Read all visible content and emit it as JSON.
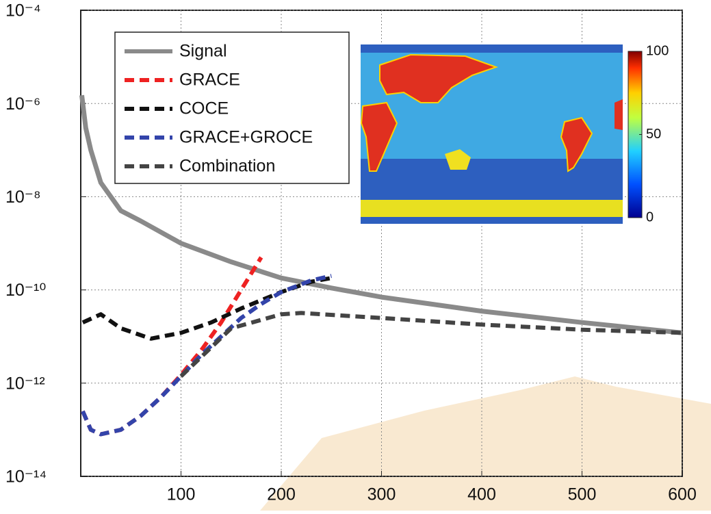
{
  "chart_data": {
    "type": "line",
    "log_y": true,
    "grid": true,
    "legend": "upper left",
    "xlim": [
      0,
      600
    ],
    "ylim": [
      1e-14,
      0.0001
    ],
    "xticks": [
      100,
      200,
      300,
      400,
      500,
      600
    ],
    "yticks": [
      {
        "value": 1e-14,
        "label": "10⁻¹⁴"
      },
      {
        "value": 1e-12,
        "label": "10⁻¹²"
      },
      {
        "value": 1e-10,
        "label": "10⁻¹⁰"
      },
      {
        "value": 1e-08,
        "label": "10⁻⁸"
      },
      {
        "value": 1e-06,
        "label": "10⁻⁶"
      },
      {
        "value": 0.0001,
        "label": "10⁻⁴"
      }
    ],
    "series": [
      {
        "name": "Signal",
        "color": "#8a8a8a",
        "dash": false,
        "x": [
          1,
          5,
          10,
          20,
          40,
          60,
          100,
          150,
          200,
          250,
          300,
          400,
          500,
          600
        ],
        "values": [
          1.5e-06,
          3e-07,
          1e-07,
          2e-08,
          5e-09,
          3e-09,
          1e-09,
          4e-10,
          1.8e-10,
          1.1e-10,
          7e-11,
          3.5e-11,
          2e-11,
          1.2e-11
        ]
      },
      {
        "name": "GRACE",
        "color": "#ee2222",
        "dash": true,
        "x": [
          2,
          10,
          20,
          40,
          60,
          80,
          100,
          120,
          140,
          160,
          180
        ],
        "values": [
          2.5e-13,
          1e-13,
          8e-14,
          1e-13,
          2e-13,
          5e-13,
          1.5e-12,
          5e-12,
          2e-11,
          1e-10,
          5e-10
        ]
      },
      {
        "name": "COCE",
        "color": "#111111",
        "dash": true,
        "x": [
          2,
          20,
          40,
          70,
          100,
          130,
          160,
          200,
          230,
          250
        ],
        "values": [
          2e-11,
          3e-11,
          1.5e-11,
          9e-12,
          1.2e-11,
          2e-11,
          4e-11,
          9e-11,
          1.5e-10,
          1.8e-10
        ]
      },
      {
        "name": "GRACE+GROCE",
        "color": "#3344aa",
        "dash": true,
        "x": [
          2,
          10,
          20,
          40,
          60,
          80,
          100,
          120,
          140,
          160,
          180,
          200,
          230,
          250
        ],
        "values": [
          2.5e-13,
          1e-13,
          8e-14,
          1e-13,
          2e-13,
          5e-13,
          1.4e-12,
          4e-12,
          1e-11,
          2.5e-11,
          5e-11,
          9e-11,
          1.6e-10,
          2e-10
        ]
      },
      {
        "name": "Combination",
        "color": "#444444",
        "dash": true,
        "x": [
          100,
          150,
          200,
          220,
          300,
          400,
          500,
          600
        ],
        "values": [
          1.4e-12,
          1.5e-11,
          3e-11,
          3.2e-11,
          2.5e-11,
          1.8e-11,
          1.4e-11,
          1.2e-11
        ]
      }
    ],
    "colorbar_ticks": [
      0,
      50,
      100
    ]
  }
}
